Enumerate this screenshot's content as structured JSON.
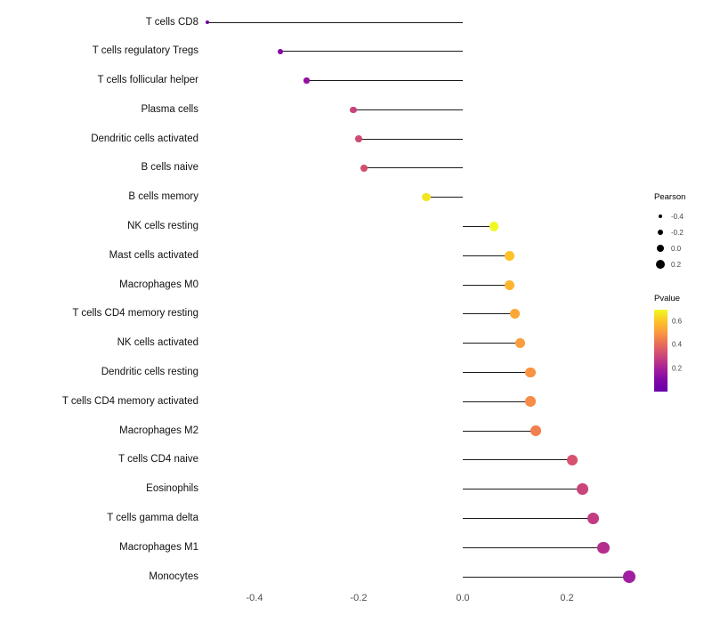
{
  "chart_data": {
    "type": "lollipop",
    "title": "",
    "xlabel": "",
    "ylabel": "",
    "xlim": [
      -0.52,
      0.36
    ],
    "grid": false,
    "x_axis": {
      "ticks": [
        {
          "value": -0.4,
          "label": "-0.4"
        },
        {
          "value": -0.2,
          "label": "-0.2"
        },
        {
          "value": 0.0,
          "label": "0.0"
        },
        {
          "value": 0.2,
          "label": "0.2"
        }
      ]
    },
    "points": [
      {
        "label": "T cells CD8",
        "pearson": -0.49,
        "color": "#6a00a8"
      },
      {
        "label": "T cells regulatory  Tregs",
        "pearson": -0.35,
        "color": "#8606a6"
      },
      {
        "label": "T cells follicular helper",
        "pearson": -0.3,
        "color": "#9511a1"
      },
      {
        "label": "Plasma cells",
        "pearson": -0.21,
        "color": "#c8437b"
      },
      {
        "label": "Dendritic cells activated",
        "pearson": -0.2,
        "color": "#cf4a72"
      },
      {
        "label": "B cells naive",
        "pearson": -0.19,
        "color": "#d14e6f"
      },
      {
        "label": "B cells memory",
        "pearson": -0.07,
        "color": "#f3e51f"
      },
      {
        "label": "NK cells resting",
        "pearson": 0.06,
        "color": "#f0f921"
      },
      {
        "label": "Mast cells activated",
        "pearson": 0.09,
        "color": "#fdc229"
      },
      {
        "label": "Macrophages M0",
        "pearson": 0.09,
        "color": "#fdb52e"
      },
      {
        "label": "T cells CD4 memory resting",
        "pearson": 0.1,
        "color": "#fca735"
      },
      {
        "label": "NK cells activated",
        "pearson": 0.11,
        "color": "#fb9d3c"
      },
      {
        "label": "Dendritic cells resting",
        "pearson": 0.13,
        "color": "#f99241"
      },
      {
        "label": "T cells CD4 memory activated",
        "pearson": 0.13,
        "color": "#f78b47"
      },
      {
        "label": "Macrophages M2",
        "pearson": 0.14,
        "color": "#f0804e"
      },
      {
        "label": "T cells CD4 naive",
        "pearson": 0.21,
        "color": "#d5536f"
      },
      {
        "label": "Eosinophils",
        "pearson": 0.23,
        "color": "#ca457a"
      },
      {
        "label": "T cells gamma delta",
        "pearson": 0.25,
        "color": "#c23c81"
      },
      {
        "label": "Macrophages M1",
        "pearson": 0.27,
        "color": "#b42e8d"
      },
      {
        "label": "Monocytes",
        "pearson": 0.32,
        "color": "#a01fa1"
      }
    ],
    "legend": {
      "size": {
        "title": "Pearson",
        "entries": [
          {
            "value": -0.4,
            "label": "-0.4"
          },
          {
            "value": -0.2,
            "label": "-0.2"
          },
          {
            "value": 0.0,
            "label": "0.0"
          },
          {
            "value": 0.2,
            "label": "0.2"
          }
        ]
      },
      "color": {
        "title": "Pvalue",
        "ticks": [
          {
            "value": 0.6,
            "label": "0.6"
          },
          {
            "value": 0.4,
            "label": "0.4"
          },
          {
            "value": 0.2,
            "label": "0.2"
          }
        ],
        "range_top": 0.7,
        "range_bottom": 0.0,
        "gradient_top_to_bottom": [
          "#f0f921",
          "#fdc229",
          "#f9973f",
          "#e8695c",
          "#ca457a",
          "#a62098",
          "#8008a6",
          "#6a00a8"
        ]
      }
    }
  }
}
